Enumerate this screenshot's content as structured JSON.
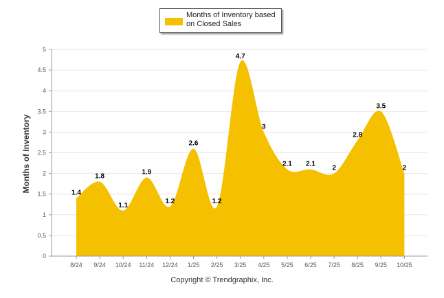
{
  "legend": {
    "label": "Months of Inventory based on Closed Sales"
  },
  "footer": {
    "copyright": "Copyright © Trendgraphix, Inc."
  },
  "colors": {
    "series": "#F5C000",
    "grid": "#e6e6e6",
    "axis": "#999999"
  },
  "chart_data": {
    "type": "area",
    "title": "",
    "xlabel": "",
    "ylabel": "Months of Inventory",
    "categories": [
      "8/24",
      "9/24",
      "10/24",
      "11/24",
      "12/24",
      "1/25",
      "2/25",
      "3/25",
      "4/25",
      "5/25",
      "6/25",
      "7/25",
      "8/25",
      "9/25",
      "10/25"
    ],
    "series": [
      {
        "name": "Months of Inventory based on Closed Sales",
        "values": [
          1.4,
          1.8,
          1.1,
          1.9,
          1.2,
          2.6,
          1.2,
          4.7,
          3,
          2.1,
          2.1,
          2,
          2.8,
          3.5,
          2
        ]
      }
    ],
    "data_labels": [
      "1.4",
      "1.8",
      "1.1",
      "1.9",
      "1.2",
      "2.6",
      "1.2",
      "4.7",
      "3",
      "2.1",
      "2.1",
      "2",
      "2.8",
      "3.5",
      "2"
    ],
    "ylim": [
      0,
      5
    ],
    "yticks": [
      0,
      0.5,
      1,
      1.5,
      2,
      2.5,
      3,
      3.5,
      4,
      4.5,
      5
    ],
    "ytick_labels": [
      "0",
      "0.5",
      "1",
      "1.5",
      "2",
      "2.5",
      "3",
      "3.5",
      "4",
      "4.5",
      "5"
    ],
    "grid": true,
    "legend_position": "top-center"
  }
}
